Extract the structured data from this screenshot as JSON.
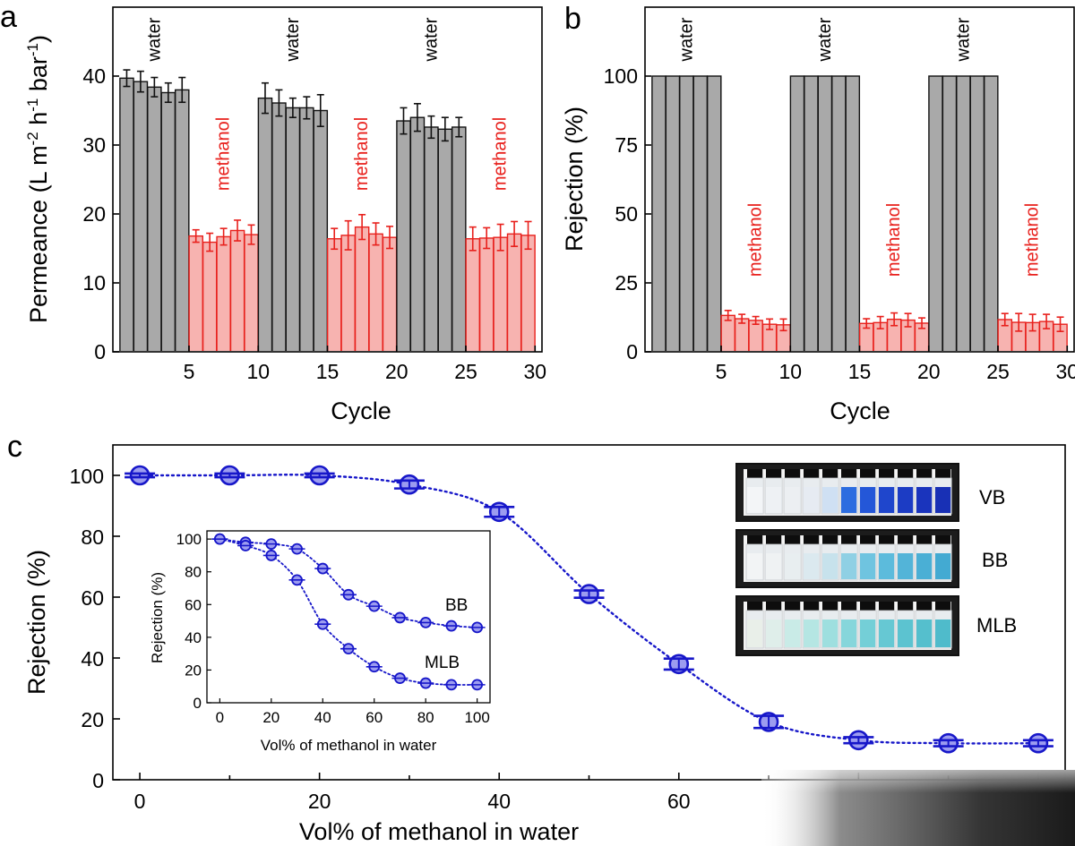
{
  "colors": {
    "water_bar": "#a9a9a9",
    "methanol_bar": "#f7b3b0",
    "methanol_edge": "#e8201c",
    "marker_fill": "#9c9cf0",
    "marker_edge": "#1717c9",
    "vial_glass": "#e8ecef"
  },
  "chart_data": [
    {
      "id": "a",
      "type": "bar",
      "panel_label": "a",
      "xlabel": "Cycle",
      "ylabel": "Permeance (L m⁻² h⁻¹ bar⁻¹)",
      "ylabel_parts": {
        "main": "Permeance (L m",
        "exp1": "-2",
        "mid1": " h",
        "exp2": "-1",
        "mid2": " bar",
        "exp3": "-1",
        "end": ")"
      },
      "xlim": [
        0,
        31
      ],
      "ylim": [
        0,
        50
      ],
      "xticks": [
        5,
        10,
        15,
        20,
        25,
        30
      ],
      "yticks": [
        0,
        10,
        20,
        30,
        40
      ],
      "x": [
        1,
        2,
        3,
        4,
        5,
        6,
        7,
        8,
        9,
        10,
        11,
        12,
        13,
        14,
        15,
        16,
        17,
        18,
        19,
        20,
        21,
        22,
        23,
        24,
        25,
        26,
        27,
        28,
        29,
        30
      ],
      "values": [
        39.7,
        39.2,
        38.4,
        37.6,
        38.0,
        16.8,
        15.9,
        16.7,
        17.6,
        17.0,
        36.8,
        36.1,
        35.4,
        35.4,
        35.0,
        16.4,
        16.9,
        18.1,
        17.1,
        16.6,
        33.5,
        34.0,
        32.6,
        32.3,
        32.6,
        16.4,
        16.5,
        16.6,
        17.1,
        16.9
      ],
      "errors": [
        1.2,
        1.5,
        1.4,
        1.4,
        1.8,
        0.9,
        1.3,
        1.2,
        1.5,
        1.4,
        2.2,
        1.9,
        1.4,
        1.6,
        2.3,
        1.5,
        2.1,
        1.8,
        1.6,
        1.6,
        1.9,
        2.0,
        1.6,
        1.7,
        1.4,
        1.7,
        1.5,
        1.9,
        1.8,
        2.0
      ],
      "segments": [
        {
          "solvent": "water",
          "label": "water",
          "from": 1,
          "to": 5
        },
        {
          "solvent": "methanol",
          "label": "methanol",
          "from": 6,
          "to": 10
        },
        {
          "solvent": "water",
          "label": "water",
          "from": 11,
          "to": 15
        },
        {
          "solvent": "methanol",
          "label": "methanol",
          "from": 16,
          "to": 20
        },
        {
          "solvent": "water",
          "label": "water",
          "from": 21,
          "to": 25
        },
        {
          "solvent": "methanol",
          "label": "methanol",
          "from": 26,
          "to": 30
        }
      ]
    },
    {
      "id": "b",
      "type": "bar",
      "panel_label": "b",
      "xlabel": "Cycle",
      "ylabel": "Rejection (%)",
      "xlim": [
        0,
        31
      ],
      "ylim": [
        0,
        125
      ],
      "xticks": [
        5,
        10,
        15,
        20,
        25,
        30
      ],
      "yticks": [
        0,
        25,
        50,
        75,
        100
      ],
      "x": [
        1,
        2,
        3,
        4,
        5,
        6,
        7,
        8,
        9,
        10,
        11,
        12,
        13,
        14,
        15,
        16,
        17,
        18,
        19,
        20,
        21,
        22,
        23,
        24,
        25,
        26,
        27,
        28,
        29,
        30
      ],
      "values": [
        100,
        100,
        100,
        100,
        100,
        13.2,
        12.0,
        11.4,
        10.0,
        9.8,
        100,
        100,
        100,
        100,
        100,
        10.3,
        10.6,
        11.8,
        11.5,
        10.4,
        100,
        100,
        100,
        100,
        100,
        11.7,
        10.7,
        10.6,
        11.0,
        10.0
      ],
      "errors": [
        0,
        0,
        0,
        0,
        0,
        1.8,
        1.6,
        1.4,
        1.9,
        2.1,
        0,
        0,
        0,
        0,
        0,
        1.7,
        2.2,
        2.3,
        2.4,
        1.9,
        0,
        0,
        0,
        0,
        0,
        2.2,
        3.2,
        3.0,
        2.6,
        2.6
      ],
      "segments": [
        {
          "solvent": "water",
          "label": "water",
          "from": 1,
          "to": 5
        },
        {
          "solvent": "methanol",
          "label": "methanol",
          "from": 6,
          "to": 10
        },
        {
          "solvent": "water",
          "label": "water",
          "from": 11,
          "to": 15
        },
        {
          "solvent": "methanol",
          "label": "methanol",
          "from": 16,
          "to": 20
        },
        {
          "solvent": "water",
          "label": "water",
          "from": 21,
          "to": 25
        },
        {
          "solvent": "methanol",
          "label": "methanol",
          "from": 26,
          "to": 30
        }
      ]
    },
    {
      "id": "c",
      "type": "scatter",
      "panel_label": "c",
      "xlabel": "Vol% of methanol in water",
      "ylabel": "Rejection (%)",
      "xlim": [
        -3,
        103
      ],
      "ylim": [
        0,
        110
      ],
      "xticks": [
        0,
        20,
        40,
        60
      ],
      "yticks": [
        0,
        20,
        40,
        60,
        80,
        100
      ],
      "series": [
        {
          "name": "VB",
          "x": [
            0,
            10,
            20,
            30,
            40,
            50,
            60,
            70,
            80,
            90,
            100
          ],
          "y": [
            100,
            100,
            100,
            97,
            88,
            61,
            38,
            19,
            13,
            12,
            12
          ],
          "errors": [
            0.6,
            0.6,
            0.6,
            1.3,
            1.6,
            1.2,
            1.8,
            2.0,
            1.0,
            1.0,
            1.0
          ]
        }
      ],
      "vial_photos": [
        {
          "dye": "VB",
          "label": "VB"
        },
        {
          "dye": "BB",
          "label": "BB"
        },
        {
          "dye": "MLB",
          "label": "MLB"
        }
      ]
    },
    {
      "id": "c-inset",
      "type": "scatter",
      "xlabel": "Vol% of methanol in water",
      "ylabel": "Rejection (%)",
      "xlim": [
        -5,
        105
      ],
      "ylim": [
        0,
        105
      ],
      "xticks": [
        0,
        20,
        40,
        60,
        80,
        100
      ],
      "yticks": [
        0,
        20,
        40,
        60,
        80,
        100
      ],
      "series": [
        {
          "name": "BB",
          "label": "BB",
          "x": [
            0,
            10,
            20,
            30,
            40,
            50,
            60,
            70,
            80,
            90,
            100
          ],
          "y": [
            100,
            98,
            97,
            94,
            82,
            66,
            59,
            52,
            49,
            47,
            46
          ]
        },
        {
          "name": "MLB",
          "label": "MLB",
          "x": [
            0,
            10,
            20,
            30,
            40,
            50,
            60,
            70,
            80,
            90,
            100
          ],
          "y": [
            100,
            96,
            90,
            75,
            48,
            33,
            22,
            15,
            12,
            11,
            11
          ]
        }
      ]
    }
  ]
}
